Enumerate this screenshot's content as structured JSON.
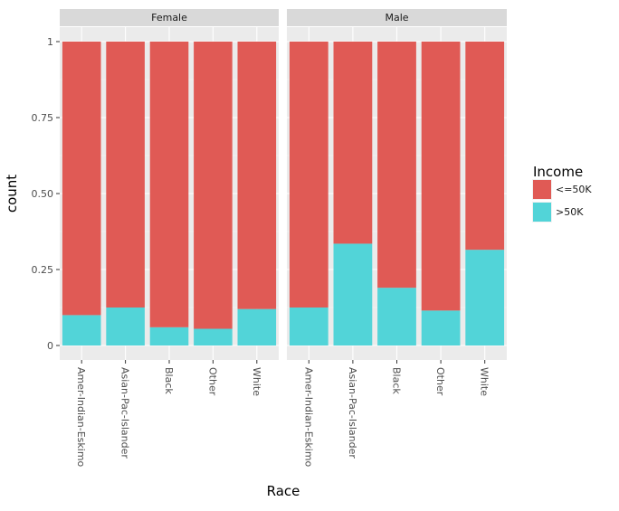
{
  "chart_data": {
    "type": "bar",
    "stacked": true,
    "position": "fill",
    "xlabel": "Race",
    "ylabel": "count",
    "ylim": [
      0,
      1
    ],
    "yticks": [
      0,
      0.25,
      0.5,
      0.75,
      1
    ],
    "ytick_labels": [
      "0",
      "0.25",
      "0.50",
      "0.75",
      "1"
    ],
    "categories": [
      "Amer-Indian-Eskimo",
      "Asian-Pac-Islander",
      "Black",
      "Other",
      "White"
    ],
    "legend": {
      "title": "Income",
      "position": "right"
    },
    "series_colors": {
      "<=50K": "#e05a55",
      ">50K": "#52d4d8"
    },
    "panels": [
      {
        "label": "Female",
        "series": [
          {
            "name": ">50K",
            "values": [
              0.1,
              0.125,
              0.06,
              0.055,
              0.12
            ]
          },
          {
            "name": "<=50K",
            "values": [
              0.9,
              0.875,
              0.94,
              0.945,
              0.88
            ]
          }
        ]
      },
      {
        "label": "Male",
        "series": [
          {
            "name": ">50K",
            "values": [
              0.125,
              0.335,
              0.19,
              0.115,
              0.315
            ]
          },
          {
            "name": "<=50K",
            "values": [
              0.875,
              0.665,
              0.81,
              0.885,
              0.685
            ]
          }
        ]
      }
    ],
    "grid": true
  }
}
